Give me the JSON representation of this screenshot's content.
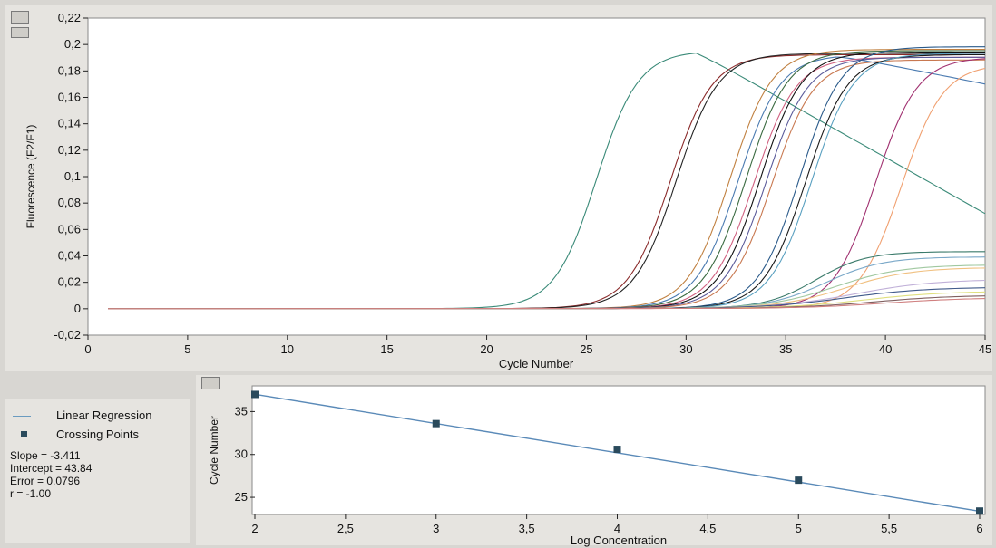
{
  "chart_data": [
    {
      "type": "line",
      "title": "",
      "xlabel": "Cycle Number",
      "ylabel": "Fluorescence (F2/F1)",
      "xlim": [
        0,
        45
      ],
      "ylim": [
        -0.02,
        0.22
      ],
      "x_ticks": [
        "0",
        "5",
        "10",
        "15",
        "20",
        "25",
        "30",
        "35",
        "40",
        "45"
      ],
      "y_ticks": [
        "-0,02",
        "0",
        "0,02",
        "0,04",
        "0,06",
        "0,08",
        "0,1",
        "0,12",
        "0,14",
        "0,16",
        "0,18",
        "0,2",
        "0,22"
      ],
      "grid": false,
      "series": [
        {
          "color": "#3a8a78",
          "ct": 25.5,
          "plateau": 0.195,
          "slope": 0.95,
          "decline": 0.0085
        },
        {
          "color": "#8a2a2a",
          "ct": 29.2,
          "plateau": 0.192,
          "slope": 0.95,
          "decline": 0.0
        },
        {
          "color": "#222222",
          "ct": 29.5,
          "plateau": 0.193,
          "slope": 0.95,
          "decline": 0.0
        },
        {
          "color": "#c08040",
          "ct": 32.2,
          "plateau": 0.196,
          "slope": 0.95,
          "decline": 0.0
        },
        {
          "color": "#4a7ab0",
          "ct": 32.6,
          "plateau": 0.192,
          "slope": 0.95,
          "decline": 0.003
        },
        {
          "color": "#3a6a40",
          "ct": 33.0,
          "plateau": 0.195,
          "slope": 0.95,
          "decline": 0.0
        },
        {
          "color": "#d06080",
          "ct": 33.4,
          "plateau": 0.19,
          "slope": 0.95,
          "decline": 0.0
        },
        {
          "color": "#101010",
          "ct": 33.7,
          "plateau": 0.194,
          "slope": 0.95,
          "decline": 0.0
        },
        {
          "color": "#5a5a9a",
          "ct": 34.0,
          "plateau": 0.19,
          "slope": 0.95,
          "decline": 0.0
        },
        {
          "color": "#c87850",
          "ct": 34.3,
          "plateau": 0.188,
          "slope": 0.95,
          "decline": 0.0
        },
        {
          "color": "#2a5a8a",
          "ct": 35.7,
          "plateau": 0.198,
          "slope": 0.95,
          "decline": 0.0
        },
        {
          "color": "#1a1a1a",
          "ct": 36.0,
          "plateau": 0.192,
          "slope": 0.95,
          "decline": 0.0
        },
        {
          "color": "#5aa0c0",
          "ct": 36.3,
          "plateau": 0.193,
          "slope": 0.95,
          "decline": 0.0
        },
        {
          "color": "#a03070",
          "ct": 39.5,
          "plateau": 0.19,
          "slope": 0.95,
          "decline": 0.0
        },
        {
          "color": "#f0a070",
          "ct": 40.8,
          "plateau": 0.185,
          "slope": 0.95,
          "decline": 0.0
        },
        {
          "color": "#3a7a6a",
          "ct": 36.5,
          "plateau": 0.043,
          "slope": 0.8,
          "decline": 0.0
        },
        {
          "color": "#7aa8c8",
          "ct": 37.0,
          "plateau": 0.039,
          "slope": 0.7,
          "decline": 0.0
        },
        {
          "color": "#a0c8a0",
          "ct": 37.5,
          "plateau": 0.033,
          "slope": 0.6,
          "decline": 0.0
        },
        {
          "color": "#f0c080",
          "ct": 38.0,
          "plateau": 0.031,
          "slope": 0.6,
          "decline": 0.0
        },
        {
          "color": "#c0b0d8",
          "ct": 38.5,
          "plateau": 0.022,
          "slope": 0.5,
          "decline": 0.0
        },
        {
          "color": "#405a8a",
          "ct": 38.0,
          "plateau": 0.016,
          "slope": 0.5,
          "decline": 0.0
        },
        {
          "color": "#e0e080",
          "ct": 39.0,
          "plateau": 0.013,
          "slope": 0.5,
          "decline": 0.0
        },
        {
          "color": "#806060",
          "ct": 39.5,
          "plateau": 0.01,
          "slope": 0.5,
          "decline": 0.0
        },
        {
          "color": "#d08080",
          "ct": 40.0,
          "plateau": 0.008,
          "slope": 0.5,
          "decline": 0.0
        }
      ]
    },
    {
      "type": "scatter",
      "title": "",
      "xlabel": "Log Concentration",
      "ylabel": "Cycle Number",
      "xlim": [
        2,
        6
      ],
      "ylim": [
        23,
        38
      ],
      "x_ticks": [
        "2",
        "2,5",
        "3",
        "3,5",
        "4",
        "4,5",
        "5",
        "5,5",
        "6"
      ],
      "y_ticks": [
        "25",
        "30",
        "35"
      ],
      "grid": false,
      "points": [
        {
          "x": 2,
          "y": 37.0
        },
        {
          "x": 3,
          "y": 33.6
        },
        {
          "x": 4,
          "y": 30.6
        },
        {
          "x": 5,
          "y": 27.0
        },
        {
          "x": 6,
          "y": 23.4
        }
      ],
      "regression": {
        "slope": -3.411,
        "intercept": 43.84
      },
      "line_color": "#5a8ab8",
      "point_color": "#2a4a5c"
    }
  ],
  "legend": {
    "linear_regression": "Linear Regression",
    "crossing_points": "Crossing Points"
  },
  "stats": {
    "slope": "Slope = -3.411",
    "intercept": "Intercept = 43.84",
    "error": "Error = 0.0796",
    "r": "r = -1.00"
  }
}
